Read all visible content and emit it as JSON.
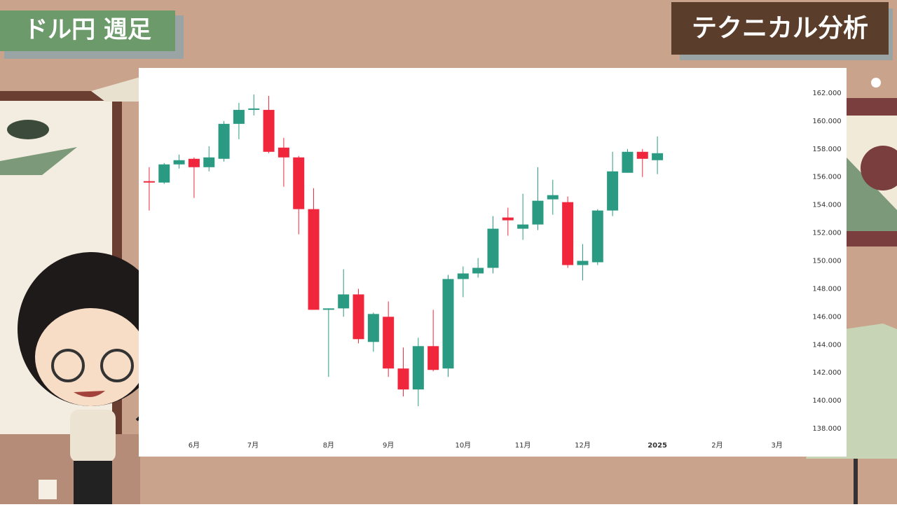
{
  "header": {
    "left_title": "ドル円 週足",
    "right_title": "テクニカル分析"
  },
  "chart_data": {
    "type": "candlestick",
    "x": [
      0,
      1,
      2,
      3,
      4,
      5,
      6,
      7,
      8,
      9,
      10,
      11,
      12,
      13,
      14,
      15,
      16,
      17,
      18,
      19,
      20,
      21,
      22,
      23,
      24,
      25,
      26,
      27,
      28,
      29,
      30,
      31,
      32,
      33,
      34
    ],
    "open": [
      155.7,
      155.6,
      156.9,
      157.3,
      156.7,
      157.3,
      159.8,
      160.8,
      160.8,
      158.1,
      157.4,
      153.7,
      146.5,
      146.6,
      147.6,
      144.2,
      146.0,
      142.3,
      140.8,
      143.9,
      142.3,
      148.7,
      149.1,
      149.5,
      153.1,
      152.3,
      152.6,
      154.4,
      154.2,
      149.7,
      149.9,
      153.6,
      156.3,
      157.8,
      157.2
    ],
    "high": [
      156.7,
      157.0,
      157.6,
      157.4,
      158.2,
      160.0,
      161.3,
      161.9,
      161.8,
      158.8,
      157.5,
      155.2,
      146.6,
      149.4,
      148.0,
      146.3,
      147.1,
      143.8,
      144.5,
      146.5,
      149.0,
      149.6,
      150.2,
      153.2,
      153.8,
      154.8,
      156.7,
      155.8,
      154.6,
      151.2,
      153.7,
      157.8,
      158.0,
      158.0,
      158.9
    ],
    "low": [
      153.6,
      155.5,
      156.6,
      154.5,
      156.4,
      157.1,
      158.7,
      160.4,
      157.7,
      155.3,
      151.9,
      146.5,
      141.7,
      146.0,
      144.1,
      143.5,
      141.7,
      140.3,
      139.6,
      142.1,
      141.7,
      147.4,
      148.8,
      149.1,
      151.8,
      151.5,
      152.2,
      153.3,
      149.5,
      148.6,
      149.7,
      153.2,
      156.3,
      156.0,
      156.2
    ],
    "close": [
      155.6,
      156.9,
      157.2,
      156.7,
      157.4,
      159.8,
      160.8,
      160.9,
      157.8,
      157.4,
      153.7,
      146.5,
      146.6,
      147.6,
      144.4,
      146.2,
      142.3,
      140.8,
      143.9,
      142.2,
      148.7,
      149.1,
      149.5,
      152.3,
      152.9,
      152.6,
      154.3,
      154.7,
      149.7,
      150.0,
      153.6,
      156.4,
      157.8,
      157.3,
      157.7
    ],
    "up_color": "#2a9a82",
    "down_color": "#f0273c",
    "xlim": [
      -0.7,
      43.7
    ],
    "xticks": [
      {
        "value": 3,
        "label": "6月"
      },
      {
        "value": 6.94,
        "label": "7月"
      },
      {
        "value": 12,
        "label": "8月"
      },
      {
        "value": 16,
        "label": "9月"
      },
      {
        "value": 21,
        "label": "10月"
      },
      {
        "value": 25,
        "label": "11月"
      },
      {
        "value": 29,
        "label": "12月"
      },
      {
        "value": 34,
        "label": "2025"
      },
      {
        "value": 38,
        "label": "2月"
      },
      {
        "value": 42,
        "label": "3月"
      }
    ],
    "ylim": [
      136,
      163.8
    ],
    "yticks": [
      {
        "value": 138,
        "label": "138.000"
      },
      {
        "value": 140,
        "label": "140.000"
      },
      {
        "value": 142,
        "label": "142.000"
      },
      {
        "value": 144,
        "label": "144.000"
      },
      {
        "value": 146,
        "label": "146.000"
      },
      {
        "value": 148,
        "label": "148.000"
      },
      {
        "value": 150,
        "label": "150.000"
      },
      {
        "value": 152,
        "label": "152.000"
      },
      {
        "value": 154,
        "label": "154.000"
      },
      {
        "value": 156,
        "label": "156.000"
      },
      {
        "value": 158,
        "label": "158.000"
      },
      {
        "value": 160,
        "label": "160.000"
      },
      {
        "value": 162,
        "label": "162.000"
      }
    ],
    "grid": false
  }
}
